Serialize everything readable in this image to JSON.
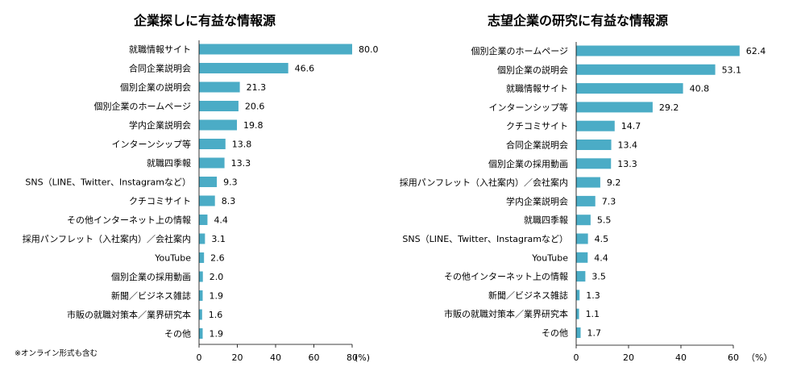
{
  "chart_data": [
    {
      "type": "bar",
      "orientation": "horizontal",
      "title": "企業探しに有益な情報源",
      "categories": [
        "就職情報サイト",
        "合同企業説明会",
        "個別企業の説明会",
        "個別企業のホームページ",
        "学内企業説明会",
        "インターンシップ等",
        "就職四季報",
        "SNS（LINE、Twitter、Instagramなど）",
        "クチコミサイト",
        "その他インターネット上の情報",
        "採用パンフレット（入社案内）／会社案内",
        "YouTube",
        "個別企業の採用動画",
        "新聞／ビジネス雑誌",
        "市販の就職対策本／業界研究本",
        "その他"
      ],
      "values": [
        80.0,
        46.6,
        21.3,
        20.6,
        19.8,
        13.8,
        13.3,
        9.3,
        8.3,
        4.4,
        3.1,
        2.6,
        2.0,
        1.9,
        1.6,
        1.9
      ],
      "value_labels": [
        "80.0",
        "46.6",
        "21.3",
        "20.6",
        "19.8",
        "13.8",
        "13.3",
        "9.3",
        "8.3",
        "4.4",
        "3.1",
        "2.6",
        "2.0",
        "1.9",
        "1.6",
        "1.9"
      ],
      "xlim": [
        0,
        80
      ],
      "xticks": [
        "0",
        "20",
        "40",
        "60",
        "80"
      ],
      "unit": "(%)",
      "grid": false,
      "bar_color": "#4bacc6",
      "footnote": "※オンライン形式も含む"
    },
    {
      "type": "bar",
      "orientation": "horizontal",
      "title": "志望企業の研究に有益な情報源",
      "categories": [
        "個別企業のホームページ",
        "個別企業の説明会",
        "就職情報サイト",
        "インターンシップ等",
        "クチコミサイト",
        "合同企業説明会",
        "個別企業の採用動画",
        "採用パンフレット（入社案内）／会社案内",
        "学内企業説明会",
        "就職四季報",
        "SNS（LINE、Twitter、Instagramなど）",
        "YouTube",
        "その他インターネット上の情報",
        "新聞／ビジネス雑誌",
        "市販の就職対策本／業界研究本",
        "その他"
      ],
      "values": [
        62.4,
        53.1,
        40.8,
        29.2,
        14.7,
        13.4,
        13.3,
        9.2,
        7.3,
        5.5,
        4.5,
        4.4,
        3.5,
        1.3,
        1.1,
        1.7
      ],
      "value_labels": [
        "62.4",
        "53.1",
        "40.8",
        "29.2",
        "14.7",
        "13.4",
        "13.3",
        "9.2",
        "7.3",
        "5.5",
        "4.5",
        "4.4",
        "3.5",
        "1.3",
        "1.1",
        "1.7"
      ],
      "xlim": [
        0,
        60
      ],
      "xticks": [
        "0",
        "20",
        "40",
        "60"
      ],
      "unit": "（%）",
      "grid": false,
      "bar_color": "#4bacc6"
    }
  ]
}
